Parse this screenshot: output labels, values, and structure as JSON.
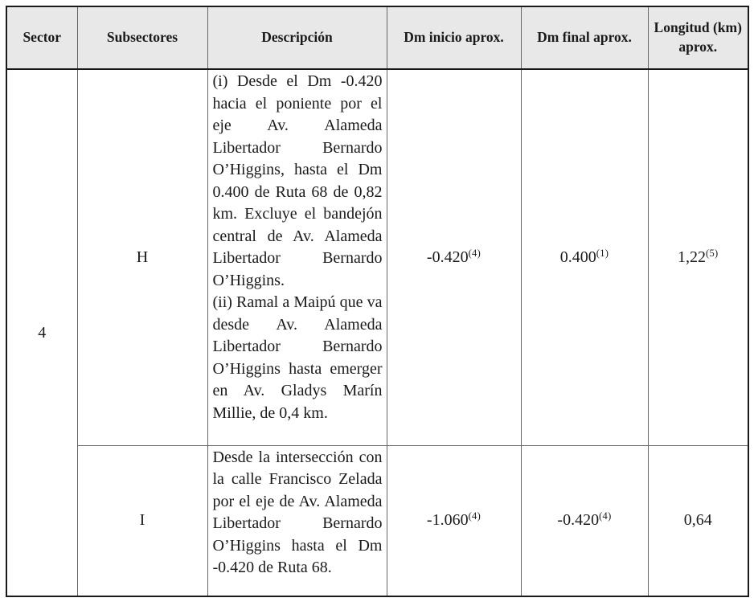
{
  "colors": {
    "header_background": "#e8e8e8",
    "outer_border": "#1a1a1a",
    "inner_border": "#666666",
    "text": "#1a1a1a"
  },
  "table": {
    "headers": [
      "Sector",
      "Subsectores",
      "Descripción",
      "Dm inicio aprox.",
      "Dm final aprox.",
      "Longitud (km) aprox."
    ],
    "sector": "4",
    "rows": [
      {
        "subsector": "H",
        "description": [
          "(i) Desde el Dm -0.420 hacia el poniente por el eje Av. Alameda Libertador Bernardo O’Higgins, hasta el Dm 0.400 de Ruta 68 de 0,82 km. Excluye el bandejón central de Av. Alameda Libertador Bernardo O’Higgins.",
          "(ii) Ramal a Maipú que va desde Av. Alameda Libertador Bernardo O’Higgins hasta emerger en Av. Gladys Marín Millie, de 0,4 km."
        ],
        "dm_inicio": {
          "value": "-0.420",
          "sup": "(4)"
        },
        "dm_final": {
          "value": "0.400",
          "sup": "(1)"
        },
        "longitud": {
          "value": "1,22",
          "sup": "(5)"
        }
      },
      {
        "subsector": "I",
        "description": [
          "Desde la intersección con la calle Francisco Zelada por el eje de Av. Alameda Libertador Bernardo O’Higgins hasta el Dm -0.420 de Ruta 68."
        ],
        "dm_inicio": {
          "value": "-1.060",
          "sup": "(4)"
        },
        "dm_final": {
          "value": "-0.420",
          "sup": "(4)"
        },
        "longitud": {
          "value": "0,64",
          "sup": ""
        }
      }
    ]
  }
}
